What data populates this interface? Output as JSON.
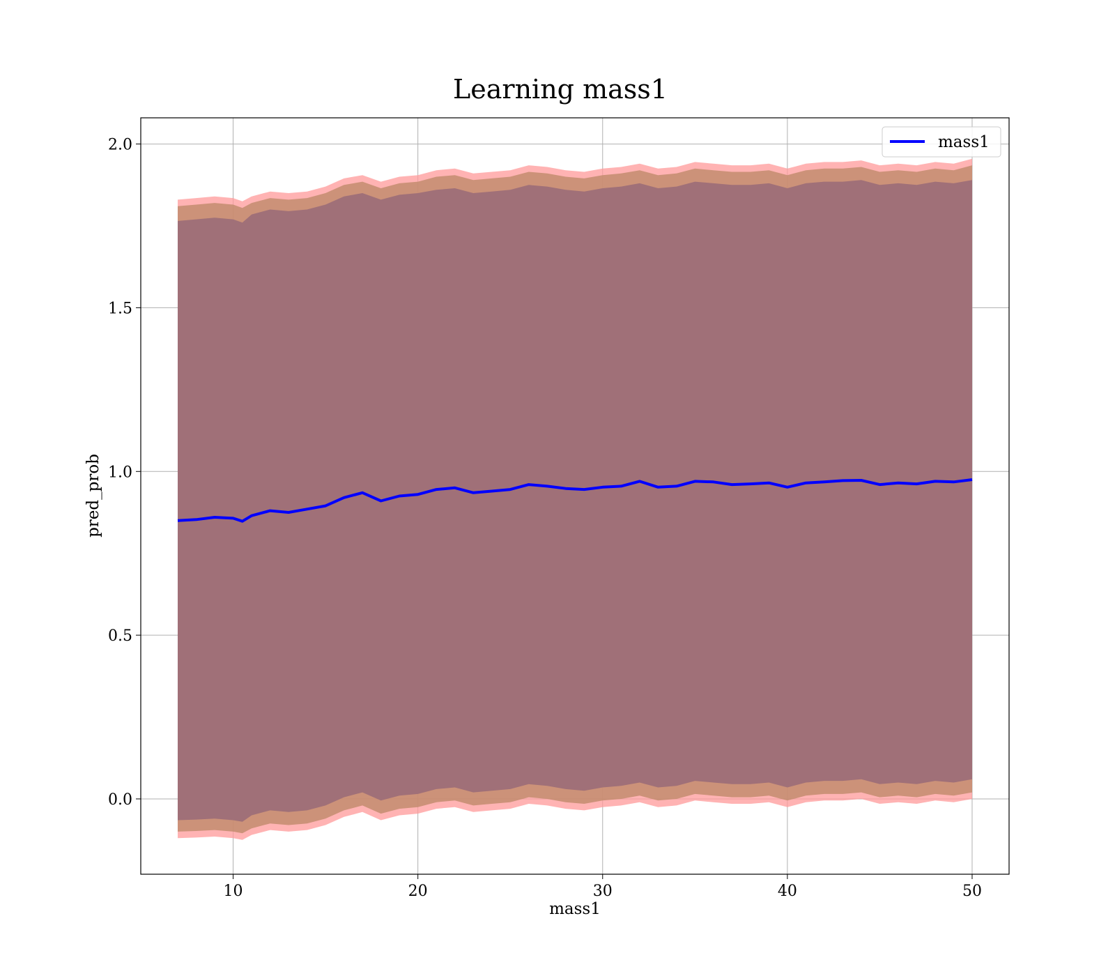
{
  "chart_data": {
    "type": "area",
    "title": "Learning mass1",
    "xlabel": "mass1",
    "ylabel": "pred_prob",
    "xlim": [
      5,
      52
    ],
    "ylim": [
      -0.23,
      2.08
    ],
    "x_ticks": [
      10,
      20,
      30,
      40,
      50
    ],
    "y_ticks": [
      0.0,
      0.5,
      1.0,
      1.5,
      2.0
    ],
    "x_tick_labels": [
      "10",
      "20",
      "30",
      "40",
      "50"
    ],
    "y_tick_labels": [
      "0.0",
      "0.5",
      "1.0",
      "1.5",
      "2.0"
    ],
    "grid": true,
    "legend": {
      "position": "upper right",
      "entries": [
        "mass1"
      ]
    },
    "x": [
      7,
      8,
      9,
      10,
      10.5,
      11,
      12,
      13,
      14,
      15,
      16,
      17,
      18,
      19,
      20,
      21,
      22,
      23,
      24,
      25,
      26,
      27,
      28,
      29,
      30,
      31,
      32,
      33,
      34,
      35,
      36,
      37,
      38,
      39,
      40,
      41,
      42,
      43,
      44,
      45,
      46,
      47,
      48,
      49,
      50
    ],
    "series": [
      {
        "name": "mass1",
        "color": "#0000ff",
        "values": [
          0.85,
          0.853,
          0.86,
          0.857,
          0.848,
          0.865,
          0.88,
          0.875,
          0.885,
          0.895,
          0.92,
          0.935,
          0.91,
          0.925,
          0.93,
          0.945,
          0.95,
          0.935,
          0.94,
          0.945,
          0.96,
          0.955,
          0.948,
          0.945,
          0.952,
          0.955,
          0.97,
          0.952,
          0.955,
          0.97,
          0.968,
          0.96,
          0.962,
          0.965,
          0.952,
          0.965,
          0.968,
          0.972,
          0.973,
          0.96,
          0.965,
          0.962,
          0.97,
          0.968,
          0.975
        ]
      }
    ],
    "bands": [
      {
        "color": "#ff9999",
        "opacity": 0.75,
        "upper": [
          1.83,
          1.835,
          1.84,
          1.835,
          1.825,
          1.84,
          1.855,
          1.85,
          1.855,
          1.87,
          1.895,
          1.905,
          1.885,
          1.9,
          1.905,
          1.92,
          1.925,
          1.91,
          1.915,
          1.92,
          1.935,
          1.93,
          1.92,
          1.915,
          1.925,
          1.93,
          1.94,
          1.925,
          1.93,
          1.945,
          1.94,
          1.935,
          1.935,
          1.94,
          1.925,
          1.94,
          1.945,
          1.945,
          1.95,
          1.935,
          1.94,
          1.935,
          1.945,
          1.94,
          1.955
        ],
        "lower": [
          -0.12,
          -0.118,
          -0.115,
          -0.12,
          -0.125,
          -0.11,
          -0.095,
          -0.1,
          -0.095,
          -0.08,
          -0.055,
          -0.04,
          -0.065,
          -0.05,
          -0.045,
          -0.03,
          -0.025,
          -0.04,
          -0.035,
          -0.03,
          -0.015,
          -0.02,
          -0.03,
          -0.035,
          -0.025,
          -0.02,
          -0.01,
          -0.025,
          -0.02,
          -0.005,
          -0.01,
          -0.015,
          -0.015,
          -0.01,
          -0.025,
          -0.01,
          -0.005,
          -0.005,
          0.0,
          -0.015,
          -0.01,
          -0.015,
          -0.005,
          -0.01,
          0.0
        ]
      },
      {
        "color": "#bf8a6a",
        "opacity": 0.8,
        "upper": [
          1.81,
          1.815,
          1.82,
          1.815,
          1.805,
          1.82,
          1.835,
          1.83,
          1.835,
          1.85,
          1.875,
          1.885,
          1.865,
          1.88,
          1.885,
          1.9,
          1.905,
          1.89,
          1.895,
          1.9,
          1.915,
          1.91,
          1.9,
          1.895,
          1.905,
          1.91,
          1.92,
          1.905,
          1.91,
          1.925,
          1.92,
          1.915,
          1.915,
          1.92,
          1.905,
          1.92,
          1.925,
          1.925,
          1.93,
          1.915,
          1.92,
          1.915,
          1.925,
          1.92,
          1.935
        ],
        "lower": [
          -0.1,
          -0.098,
          -0.095,
          -0.1,
          -0.105,
          -0.09,
          -0.075,
          -0.08,
          -0.075,
          -0.06,
          -0.035,
          -0.02,
          -0.045,
          -0.03,
          -0.025,
          -0.01,
          -0.005,
          -0.02,
          -0.015,
          -0.01,
          0.005,
          0.0,
          -0.01,
          -0.015,
          -0.005,
          0.0,
          0.01,
          -0.005,
          0.0,
          0.015,
          0.01,
          0.005,
          0.005,
          0.01,
          -0.005,
          0.01,
          0.015,
          0.015,
          0.02,
          0.005,
          0.01,
          0.005,
          0.015,
          0.01,
          0.02
        ]
      },
      {
        "color": "#a07078",
        "opacity": 1.0,
        "upper": [
          1.765,
          1.77,
          1.775,
          1.77,
          1.76,
          1.785,
          1.8,
          1.795,
          1.8,
          1.815,
          1.84,
          1.85,
          1.83,
          1.845,
          1.85,
          1.86,
          1.865,
          1.85,
          1.855,
          1.86,
          1.875,
          1.87,
          1.86,
          1.855,
          1.865,
          1.87,
          1.88,
          1.865,
          1.87,
          1.885,
          1.88,
          1.875,
          1.875,
          1.88,
          1.865,
          1.88,
          1.885,
          1.885,
          1.89,
          1.875,
          1.88,
          1.875,
          1.885,
          1.88,
          1.89
        ],
        "lower": [
          -0.065,
          -0.063,
          -0.06,
          -0.065,
          -0.07,
          -0.05,
          -0.035,
          -0.04,
          -0.035,
          -0.02,
          0.005,
          0.02,
          -0.005,
          0.01,
          0.015,
          0.03,
          0.035,
          0.02,
          0.025,
          0.03,
          0.045,
          0.04,
          0.03,
          0.025,
          0.035,
          0.04,
          0.05,
          0.035,
          0.04,
          0.055,
          0.05,
          0.045,
          0.045,
          0.05,
          0.035,
          0.05,
          0.055,
          0.055,
          0.06,
          0.045,
          0.05,
          0.045,
          0.055,
          0.05,
          0.06
        ]
      }
    ]
  }
}
